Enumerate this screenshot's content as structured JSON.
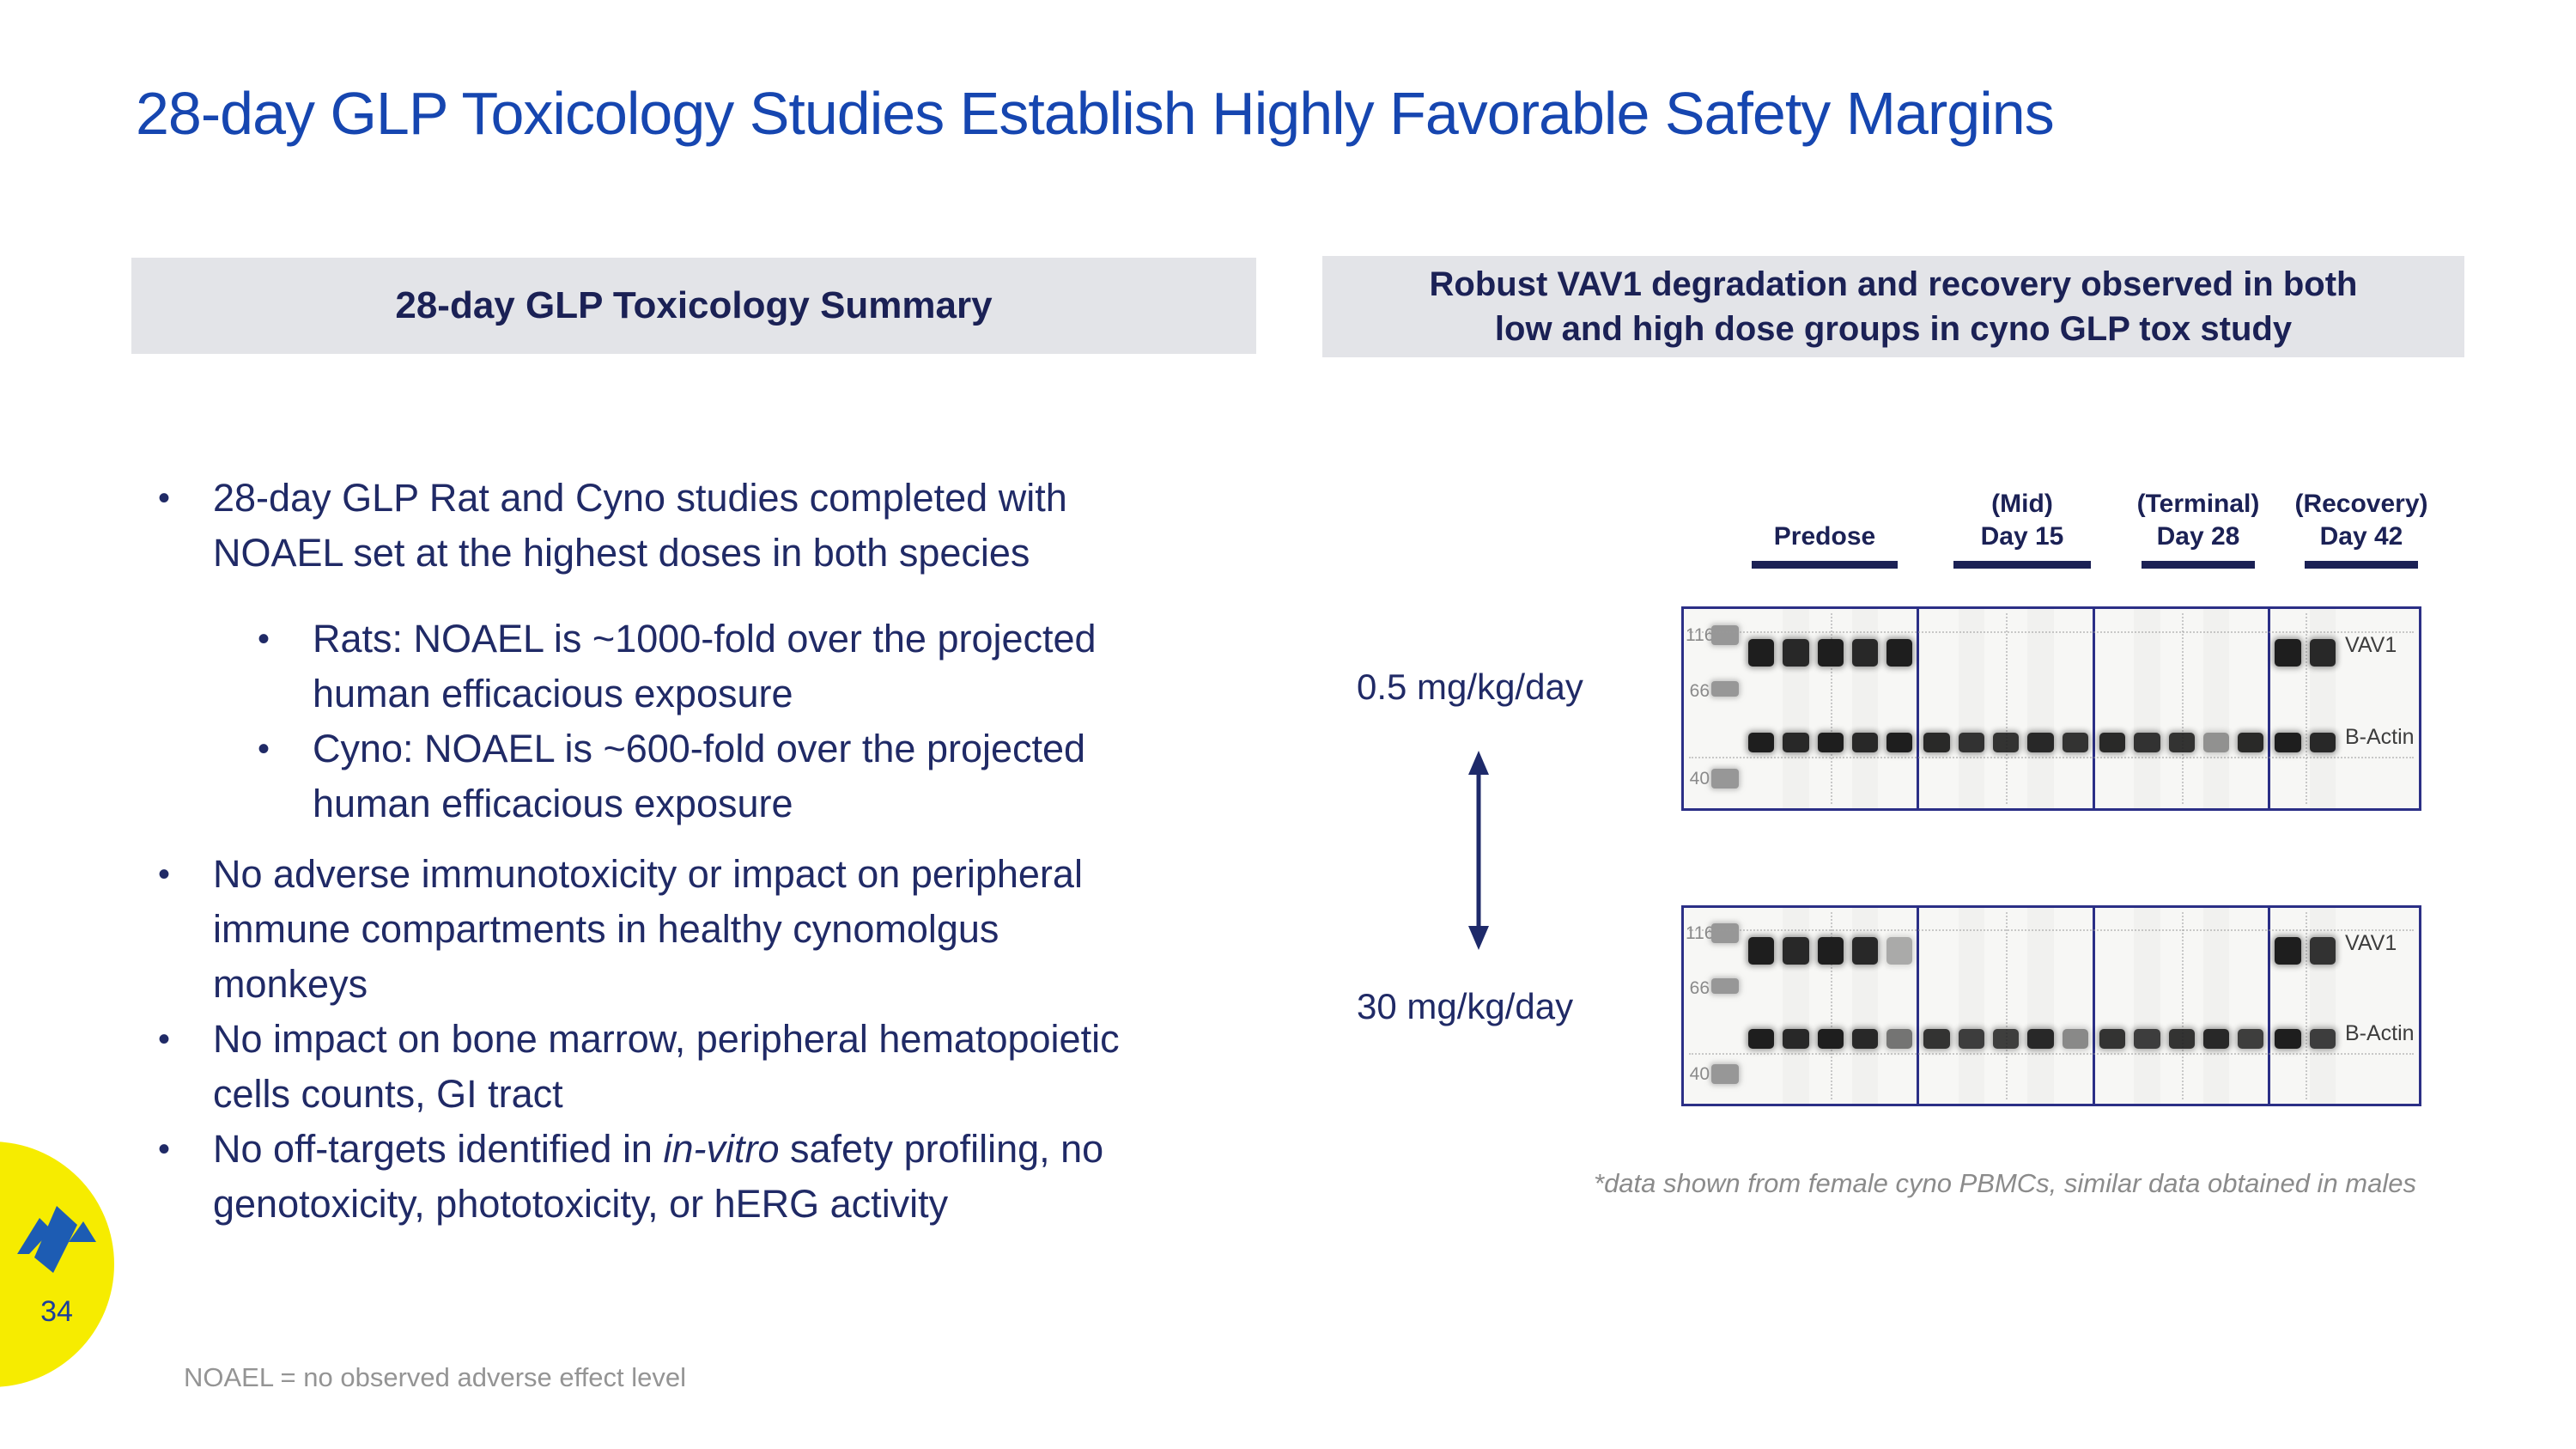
{
  "slide": {
    "title": "28-day GLP Toxicology Studies Establish Highly Favorable Safety Margins",
    "page_number": "34",
    "abbreviation_note": "NOAEL = no observed adverse effect level"
  },
  "colors": {
    "title_blue": "#1646b0",
    "body_navy": "#202a66",
    "header_navy": "#1b2155",
    "header_bg": "#e3e4e8",
    "gel_border_navy": "#2b2f86",
    "badge_yellow": "#f6ec00",
    "logo_blue": "#1d5cb3",
    "muted_gray": "#8b8b8b"
  },
  "left_panel": {
    "header": "28-day GLP Toxicology Summary",
    "bullets": [
      {
        "level": 1,
        "segments": [
          {
            "text": "28-day GLP Rat and Cyno studies completed with\nNOAEL set at the highest doses in both species"
          }
        ]
      },
      {
        "level": 2,
        "segments": [
          {
            "text": "Rats: NOAEL is ~1000-fold over the projected\nhuman efficacious exposure"
          }
        ]
      },
      {
        "level": 2,
        "segments": [
          {
            "text": "Cyno: NOAEL is ~600-fold over the projected\nhuman efficacious exposure"
          }
        ]
      },
      {
        "level": 1,
        "segments": [
          {
            "text": "No adverse immunotoxicity or impact on peripheral\nimmune compartments in healthy cynomolgus\nmonkeys"
          }
        ]
      },
      {
        "level": 1,
        "segments": [
          {
            "text": "No impact on bone marrow, peripheral hematopoietic\ncells counts, GI tract"
          }
        ]
      },
      {
        "level": 1,
        "segments": [
          {
            "text": "No off-targets identified in "
          },
          {
            "text": "in-vitro",
            "italic": true
          },
          {
            "text": " safety profiling, no\ngenotoxicity, phototoxicity, or hERG activity"
          }
        ]
      }
    ]
  },
  "right_panel": {
    "header": "Robust VAV1 degradation and recovery observed in both\nlow and high dose groups in cyno GLP tox study",
    "timepoints": [
      {
        "lines": [
          "Predose"
        ]
      },
      {
        "lines": [
          "(Mid)",
          "Day 15"
        ]
      },
      {
        "lines": [
          "(Terminal)",
          "Day 28"
        ]
      },
      {
        "lines": [
          "(Recovery)",
          "Day 42"
        ]
      }
    ],
    "doses": [
      "0.5 mg/kg/day",
      "30 mg/kg/day"
    ],
    "mw_markers": [
      "116",
      "66",
      "40"
    ],
    "gel_labels": {
      "vav1": "VAV1",
      "actin": "B-Actin"
    },
    "footnote": "*data shown from female cyno PBMCs, similar data obtained in males",
    "gels": [
      {
        "dose": "0.5 mg/kg/day",
        "sections": [
          {
            "name": "predose",
            "lanes": [
              {
                "vav1": 1,
                "actin": 1
              },
              {
                "vav1": 0.95,
                "actin": 0.95
              },
              {
                "vav1": 1,
                "actin": 1
              },
              {
                "vav1": 0.95,
                "actin": 0.95
              },
              {
                "vav1": 1,
                "actin": 1
              }
            ]
          },
          {
            "name": "day15",
            "lanes": [
              {
                "vav1": 0,
                "actin": 0.95
              },
              {
                "vav1": 0,
                "actin": 0.9
              },
              {
                "vav1": 0,
                "actin": 0.9
              },
              {
                "vav1": 0,
                "actin": 0.95
              },
              {
                "vav1": 0,
                "actin": 0.9
              }
            ]
          },
          {
            "name": "day28",
            "lanes": [
              {
                "vav1": 0,
                "actin": 0.95
              },
              {
                "vav1": 0,
                "actin": 0.9
              },
              {
                "vav1": 0,
                "actin": 0.9
              },
              {
                "vav1": 0,
                "actin": 0.45
              },
              {
                "vav1": 0,
                "actin": 0.95
              }
            ]
          },
          {
            "name": "recovery",
            "lanes": [
              {
                "vav1": 1,
                "actin": 1
              },
              {
                "vav1": 0.95,
                "actin": 0.95
              }
            ]
          }
        ]
      },
      {
        "dose": "30 mg/kg/day",
        "sections": [
          {
            "name": "predose",
            "lanes": [
              {
                "vav1": 1,
                "actin": 1
              },
              {
                "vav1": 0.95,
                "actin": 0.95
              },
              {
                "vav1": 1,
                "actin": 1
              },
              {
                "vav1": 0.95,
                "actin": 0.95
              },
              {
                "vav1": 0.35,
                "actin": 0.6
              }
            ]
          },
          {
            "name": "day15",
            "lanes": [
              {
                "vav1": 0,
                "actin": 0.9
              },
              {
                "vav1": 0,
                "actin": 0.85
              },
              {
                "vav1": 0,
                "actin": 0.85
              },
              {
                "vav1": 0,
                "actin": 0.95
              },
              {
                "vav1": 0,
                "actin": 0.5
              }
            ]
          },
          {
            "name": "day28",
            "lanes": [
              {
                "vav1": 0,
                "actin": 0.9
              },
              {
                "vav1": 0,
                "actin": 0.85
              },
              {
                "vav1": 0,
                "actin": 0.9
              },
              {
                "vav1": 0,
                "actin": 0.95
              },
              {
                "vav1": 0,
                "actin": 0.85
              }
            ]
          },
          {
            "name": "recovery",
            "lanes": [
              {
                "vav1": 1,
                "actin": 1
              },
              {
                "vav1": 0.9,
                "actin": 0.85
              }
            ]
          }
        ]
      }
    ]
  }
}
